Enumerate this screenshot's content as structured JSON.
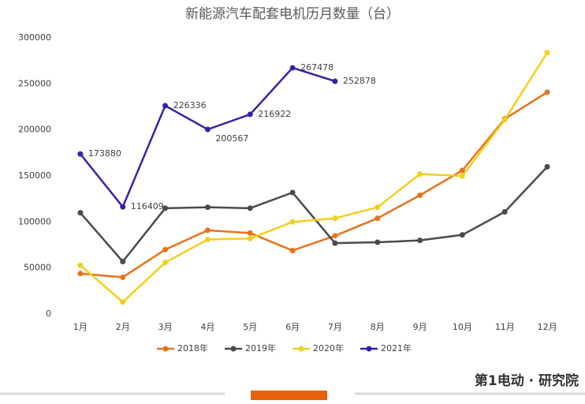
{
  "chart_data": {
    "type": "line",
    "title": "新能源汽车配套电机历月数量（台）",
    "categories": [
      "1月",
      "2月",
      "3月",
      "4月",
      "5月",
      "6月",
      "7月",
      "8月",
      "9月",
      "10月",
      "11月",
      "12月"
    ],
    "series": [
      {
        "name": "2018年",
        "color": "#e8721c",
        "values": [
          44000,
          40000,
          70000,
          91000,
          88000,
          69000,
          85000,
          104000,
          129000,
          156000,
          212000,
          241000
        ]
      },
      {
        "name": "2019年",
        "color": "#4a4a4a",
        "values": [
          110000,
          57000,
          115000,
          116000,
          115000,
          132000,
          77000,
          78000,
          80000,
          86000,
          111000,
          160000
        ]
      },
      {
        "name": "2020年",
        "color": "#f2d01a",
        "values": [
          53000,
          13000,
          56000,
          81000,
          82000,
          100000,
          104000,
          116000,
          152000,
          150000,
          211000,
          284000
        ]
      },
      {
        "name": "2021年",
        "color": "#3c1fa8",
        "show_labels": true,
        "values": [
          173880,
          116409,
          226336,
          200567,
          216922,
          267478,
          252878,
          null,
          null,
          null,
          null,
          null
        ]
      }
    ],
    "ylim": [
      0,
      300000
    ],
    "yticks": [
      0,
      50000,
      100000,
      150000,
      200000,
      250000,
      300000
    ],
    "grid": false,
    "legend": "bottom",
    "footer": "第1电动 · 研究院"
  }
}
